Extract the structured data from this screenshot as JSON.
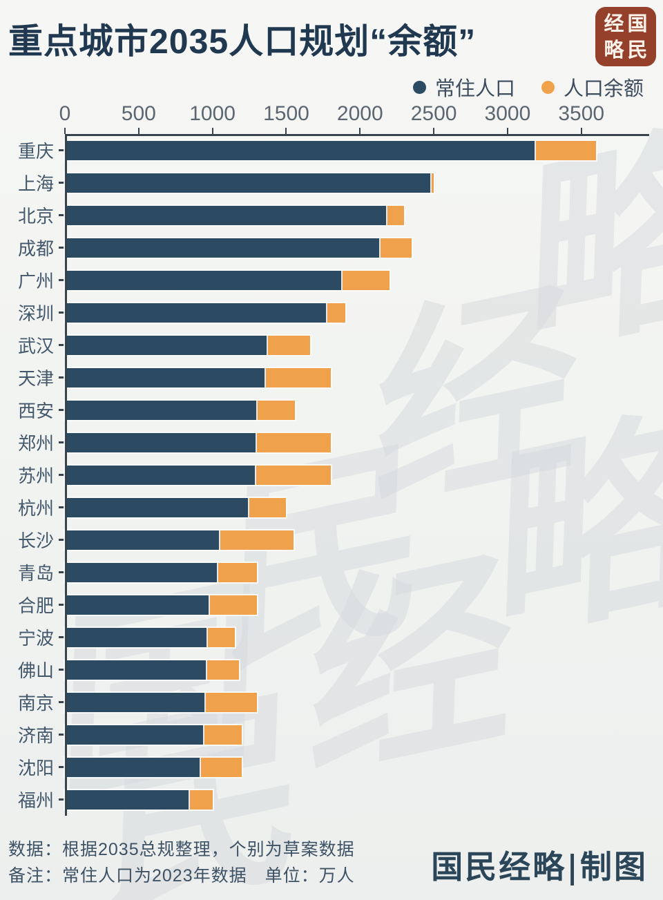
{
  "title": "重点城市2035人口规划“余额”",
  "logo": {
    "chars": [
      "经",
      "国",
      "略",
      "民"
    ]
  },
  "legend": [
    {
      "label": "常住人口",
      "color": "#2d4a63"
    },
    {
      "label": "人口余额",
      "color": "#efa14b"
    }
  ],
  "chart_data": {
    "type": "bar",
    "subtype": "horizontal-stacked",
    "unit": "万人",
    "x_axis": {
      "ticks": [
        0,
        500,
        1000,
        1500,
        2000,
        2500,
        3000,
        3500
      ],
      "max": 3960,
      "grid": false
    },
    "categories": [
      "重庆",
      "上海",
      "北京",
      "成都",
      "广州",
      "深圳",
      "武汉",
      "天津",
      "西安",
      "郑州",
      "苏州",
      "杭州",
      "长沙",
      "青岛",
      "合肥",
      "宁波",
      "佛山",
      "南京",
      "济南",
      "沈阳",
      "福州"
    ],
    "series": [
      {
        "name": "常住人口",
        "color": "#2d4a63",
        "values": [
          3191,
          2487,
          2186,
          2140,
          1883,
          1779,
          1377,
          1364,
          1308,
          1301,
          1296,
          1252,
          1051,
          1037,
          985,
          970,
          962,
          955,
          944,
          920,
          847
        ]
      },
      {
        "name": "人口余额",
        "color": "#efa14b",
        "values": [
          409,
          13,
          114,
          210,
          317,
          121,
          283,
          436,
          252,
          499,
          504,
          248,
          499,
          263,
          315,
          180,
          218,
          345,
          256,
          280,
          153
        ]
      }
    ],
    "totals_2035_plan": [
      3600,
      2500,
      2300,
      2350,
      2200,
      1900,
      1660,
      1800,
      1560,
      1800,
      1800,
      1500,
      1550,
      1300,
      1300,
      1150,
      1180,
      1300,
      1200,
      1200,
      1000
    ],
    "legend_position": "top-right"
  },
  "footer": {
    "line1": "数据：根据2035总规整理，个别为草案数据",
    "line2": "备注：常住人口为2023年数据　单位：万人",
    "credit": "国民经略|制图"
  },
  "watermark": {
    "text": "国民经略"
  },
  "colors": {
    "resident": "#2d4a63",
    "balance": "#efa14b",
    "axis": "#39434e",
    "background": "#f2f3f1",
    "logo": "#95402b"
  }
}
